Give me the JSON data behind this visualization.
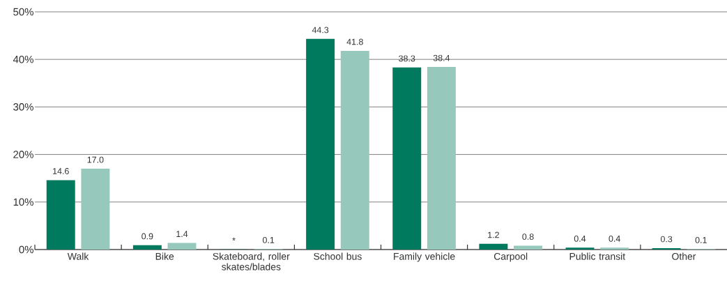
{
  "chart_data": {
    "type": "bar",
    "categories": [
      "Walk",
      "Bike",
      "Skateboard, roller skates/blades",
      "School bus",
      "Family vehicle",
      "Carpool",
      "Public transit",
      "Other"
    ],
    "series": [
      {
        "color": "#007a5e",
        "values": [
          14.6,
          0.9,
          0.02,
          44.3,
          38.3,
          1.2,
          0.4,
          0.3
        ],
        "value_labels": [
          "14.6",
          "0.9",
          "*",
          "44.3",
          "38.3",
          "1.2",
          "0.4",
          "0.3"
        ]
      },
      {
        "color": "#96c9bc",
        "values": [
          17.0,
          1.4,
          0.1,
          41.8,
          38.4,
          0.8,
          0.4,
          0.1
        ],
        "value_labels": [
          "17.0",
          "1.4",
          "0.1",
          "41.8",
          "38.4",
          "0.8",
          "0.4",
          "0.1"
        ]
      }
    ],
    "ylim": [
      0,
      50
    ],
    "yticks": [
      {
        "value": 0,
        "label": "0%"
      },
      {
        "value": 10,
        "label": "10%"
      },
      {
        "value": 20,
        "label": "20%"
      },
      {
        "value": 30,
        "label": "30%"
      },
      {
        "value": 40,
        "label": "40%"
      },
      {
        "value": 50,
        "label": "50%"
      }
    ],
    "grid": "y"
  }
}
